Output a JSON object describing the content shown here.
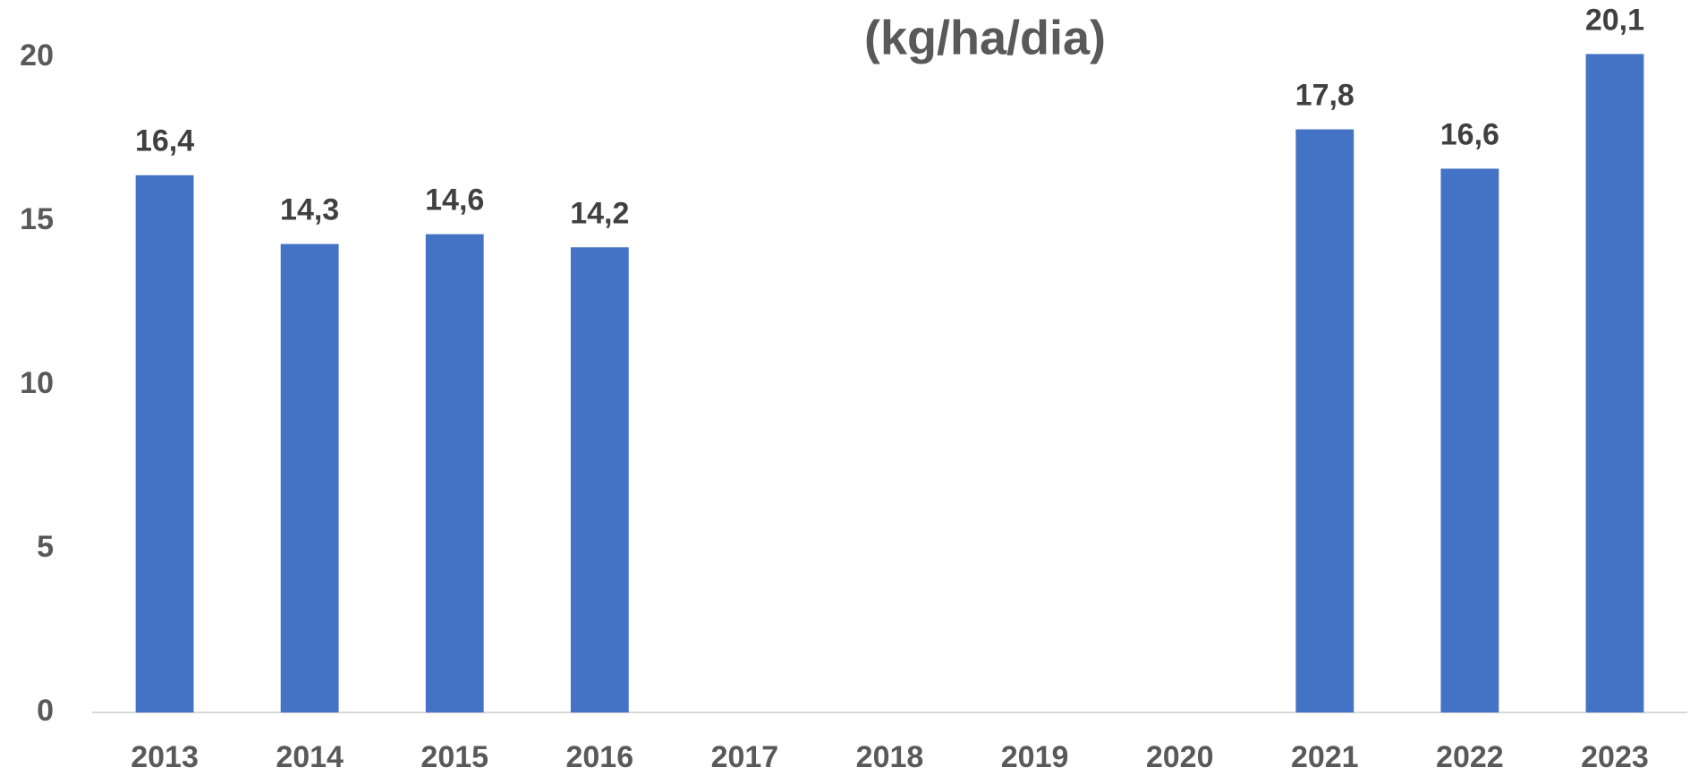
{
  "chart_data": {
    "type": "bar",
    "title": "(kg/ha/dia)",
    "categories": [
      "2013",
      "2014",
      "2015",
      "2016",
      "2017",
      "2018",
      "2019",
      "2020",
      "2021",
      "2022",
      "2023"
    ],
    "values": [
      16.4,
      14.3,
      14.6,
      14.2,
      null,
      null,
      null,
      null,
      17.8,
      16.6,
      20.1
    ],
    "value_labels": [
      "16,4",
      "14,3",
      "14,6",
      "14,2",
      null,
      null,
      null,
      null,
      "17,8",
      "16,6",
      "20,1"
    ],
    "color": "#4472c4",
    "ylim": [
      0,
      20
    ],
    "yticks": [
      0,
      5,
      10,
      15,
      20
    ],
    "grid": false
  }
}
